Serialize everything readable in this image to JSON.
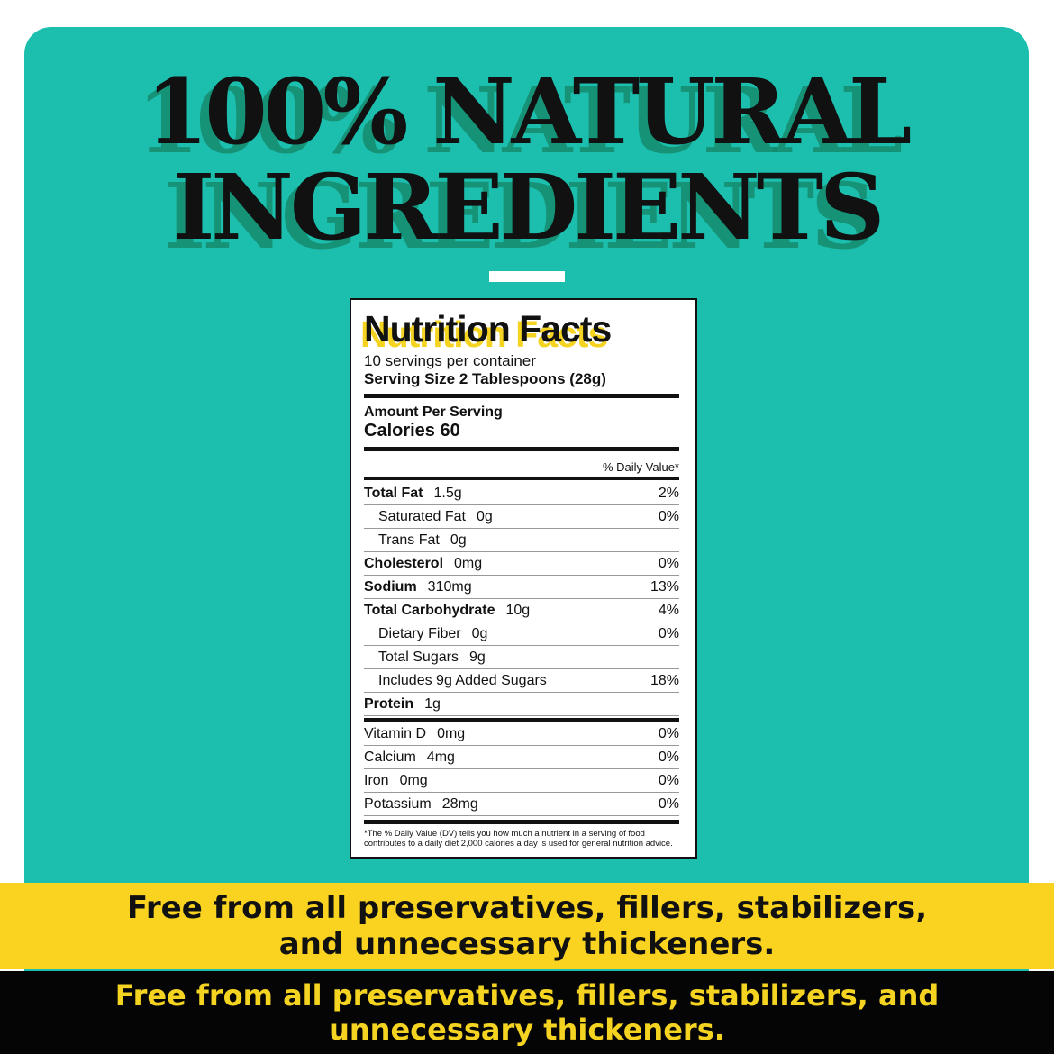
{
  "heading": {
    "line1": "100% NATURAL",
    "line2": "INGREDIENTS"
  },
  "label": {
    "title": "Nutrition Facts",
    "servings": "10 servings per container",
    "serving_size": "Serving Size  2 Tablespoons (28g)",
    "amount_per_serving": "Amount Per Serving",
    "calories": "Calories 60",
    "dv_header": "% Daily Value*",
    "nutrients": [
      {
        "name": "Total Fat",
        "amount": "1.5g",
        "dv": "2%",
        "bold": true
      },
      {
        "name": "Saturated Fat",
        "amount": "0g",
        "dv": "0%",
        "indent": true
      },
      {
        "name": "Trans Fat",
        "amount": "0g",
        "dv": "",
        "indent": true
      },
      {
        "name": "Cholesterol",
        "amount": "0mg",
        "dv": "0%",
        "bold": true
      },
      {
        "name": "Sodium",
        "amount": "310mg",
        "dv": "13%",
        "bold": true
      },
      {
        "name": "Total Carbohydrate",
        "amount": "10g",
        "dv": "4%",
        "bold": true
      },
      {
        "name": "Dietary Fiber",
        "amount": "0g",
        "dv": "0%",
        "indent": true
      },
      {
        "name": "Total Sugars",
        "amount": "9g",
        "dv": "",
        "indent": true
      },
      {
        "name": "Includes 9g Added Sugars",
        "amount": "",
        "dv": "18%",
        "indent": true
      },
      {
        "name": "Protein",
        "amount": "1g",
        "dv": "",
        "bold": true
      }
    ],
    "vitamins": [
      {
        "name": "Vitamin D",
        "amount": "0mg",
        "dv": "0%"
      },
      {
        "name": "Calcium",
        "amount": "4mg",
        "dv": "0%"
      },
      {
        "name": "Iron",
        "amount": "0mg",
        "dv": "0%"
      },
      {
        "name": "Potassium",
        "amount": "28mg",
        "dv": "0%"
      }
    ],
    "footnote": "*The % Daily Value (DV) tells you how much a nutrient in a serving of food contributes to a daily diet 2,000 calories a day is used for general nutrition advice."
  },
  "bands": {
    "black_text": "Free from all preservatives, fillers, stabilizers, and unnecessary thickeners.",
    "yellow_line1": "Free from all preservatives, fillers, stabilizers,",
    "yellow_line2": "and unnecessary thickeners."
  },
  "colors": {
    "teal": "#1cbfae",
    "yellow": "#f9d31f",
    "black": "#050505"
  }
}
